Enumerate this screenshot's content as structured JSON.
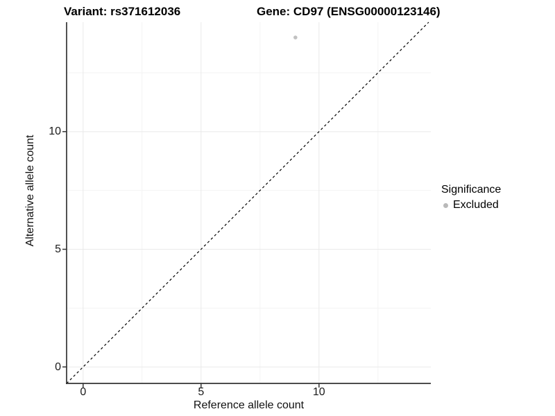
{
  "header": {
    "variant_title": "Variant: rs371612036",
    "gene_title": "Gene: CD97 (ENSG00000123146)"
  },
  "chart_data": {
    "type": "scatter",
    "title": "Variant: rs371612036   Gene: CD97 (ENSG00000123146)",
    "xlabel": "Reference allele count",
    "ylabel": "Alternative allele count",
    "xlim": [
      -0.7,
      14.74
    ],
    "ylim": [
      -0.7,
      14.65
    ],
    "xticks": [
      0,
      5,
      10
    ],
    "yticks": [
      0,
      5,
      10
    ],
    "xticks_minor": [
      2.5,
      7.5,
      12.5
    ],
    "yticks_minor": [
      2.5,
      7.5,
      12.5
    ],
    "grid": true,
    "legend_position": "right",
    "identity_line": {
      "style": "dashed",
      "from": [
        -0.7,
        -0.7
      ],
      "to": [
        14.65,
        14.65
      ],
      "equation": "y = x"
    },
    "series": [
      {
        "name": "Excluded",
        "color": "#c1c1c1",
        "points": [
          [
            9,
            14
          ]
        ],
        "point_radius": 2.8
      }
    ],
    "legend": {
      "title": "Significance",
      "entries": [
        {
          "label": "Excluded",
          "color": "#b9b9b9"
        }
      ]
    }
  },
  "colors": {
    "background": "#ffffff",
    "axis_line": "#333333",
    "tick_mark": "#333333",
    "grid_major": "#e9e9e9",
    "grid_minor": "#f3f3f3",
    "identity_line": "#000000",
    "point": "#c1c1c1",
    "text": "#000000"
  }
}
